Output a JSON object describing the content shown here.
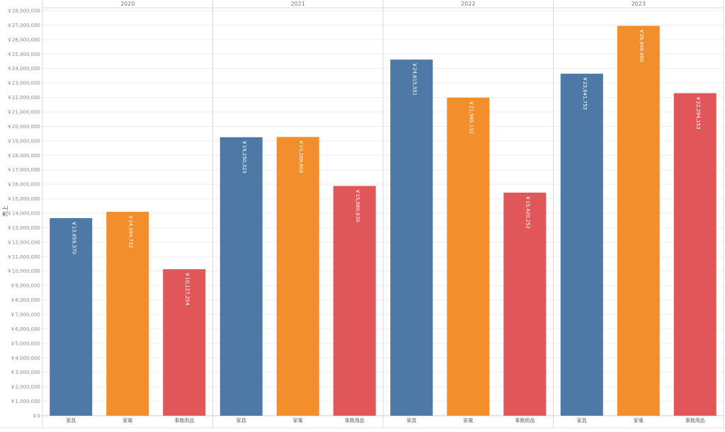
{
  "chart_data": {
    "type": "bar",
    "ylabel": "売上",
    "ylim": [
      0,
      28000000
    ],
    "ytick_step": 1000000,
    "currency_prefix": "￥",
    "grid": true,
    "groups": [
      {
        "year": "2020",
        "bars": [
          {
            "category": "家具",
            "value": 13659370,
            "label": "￥13,659,370",
            "color": "#4e79a7"
          },
          {
            "category": "家電",
            "value": 14094732,
            "label": "￥14,094,732",
            "color": "#f28e2b"
          },
          {
            "category": "事務用品",
            "value": 10127254,
            "label": "￥10,127,254",
            "color": "#e15759"
          }
        ]
      },
      {
        "year": "2021",
        "bars": [
          {
            "category": "家具",
            "value": 19250323,
            "label": "￥19,250,323",
            "color": "#4e79a7"
          },
          {
            "category": "家電",
            "value": 19268608,
            "label": "￥19,268,608",
            "color": "#f28e2b"
          },
          {
            "category": "事務用品",
            "value": 15880630,
            "label": "￥15,880,630",
            "color": "#e15759"
          }
        ]
      },
      {
        "year": "2022",
        "bars": [
          {
            "category": "家具",
            "value": 24615551,
            "label": "￥24,615,551",
            "color": "#4e79a7"
          },
          {
            "category": "家電",
            "value": 21985132,
            "label": "￥21,985,132",
            "color": "#f28e2b"
          },
          {
            "category": "事務用品",
            "value": 15420252,
            "label": "￥15,420,252",
            "color": "#e15759"
          }
        ]
      },
      {
        "year": "2023",
        "bars": [
          {
            "category": "家具",
            "value": 23641753,
            "label": "￥23,641,753",
            "color": "#4e79a7"
          },
          {
            "category": "家電",
            "value": 26949060,
            "label": "￥26,949,060",
            "color": "#f28e2b"
          },
          {
            "category": "事務用品",
            "value": 22294153,
            "label": "￥22,294,153",
            "color": "#e15759"
          }
        ]
      }
    ]
  }
}
